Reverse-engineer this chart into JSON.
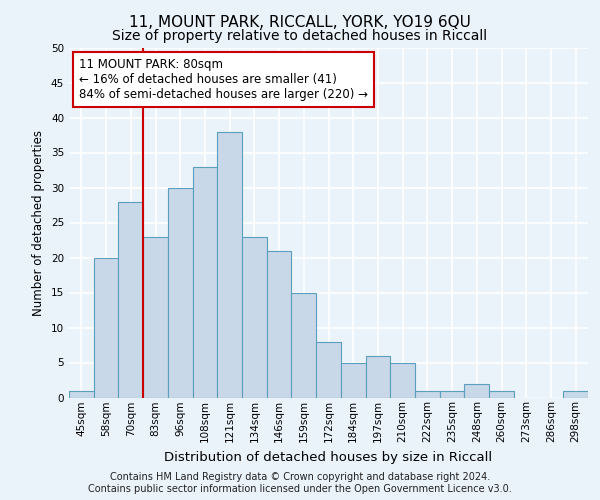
{
  "title1": "11, MOUNT PARK, RICCALL, YORK, YO19 6QU",
  "title2": "Size of property relative to detached houses in Riccall",
  "xlabel": "Distribution of detached houses by size in Riccall",
  "ylabel": "Number of detached properties",
  "categories": [
    "45sqm",
    "58sqm",
    "70sqm",
    "83sqm",
    "96sqm",
    "108sqm",
    "121sqm",
    "134sqm",
    "146sqm",
    "159sqm",
    "172sqm",
    "184sqm",
    "197sqm",
    "210sqm",
    "222sqm",
    "235sqm",
    "248sqm",
    "260sqm",
    "273sqm",
    "286sqm",
    "298sqm"
  ],
  "values": [
    1,
    20,
    28,
    23,
    30,
    33,
    38,
    23,
    21,
    15,
    8,
    5,
    6,
    5,
    1,
    1,
    2,
    1,
    0,
    0,
    1
  ],
  "bar_color": "#c8d8e8",
  "bar_edge_color": "#5a9fc0",
  "vline_x_idx": 2,
  "vline_color": "#cc0000",
  "annotation_text": "11 MOUNT PARK: 80sqm\n← 16% of detached houses are smaller (41)\n84% of semi-detached houses are larger (220) →",
  "annotation_box_color": "white",
  "annotation_box_edge": "#cc0000",
  "ylim": [
    0,
    50
  ],
  "yticks": [
    0,
    5,
    10,
    15,
    20,
    25,
    30,
    35,
    40,
    45,
    50
  ],
  "footer1": "Contains HM Land Registry data © Crown copyright and database right 2024.",
  "footer2": "Contains public sector information licensed under the Open Government Licence v3.0.",
  "bg_color": "#eaf2fa",
  "plot_bg_color": "#eaf2fa",
  "grid_color": "white",
  "title1_fontsize": 11,
  "title2_fontsize": 10,
  "xlabel_fontsize": 9.5,
  "ylabel_fontsize": 8.5,
  "tick_fontsize": 7.5,
  "annotation_fontsize": 8.5,
  "footer_fontsize": 7
}
